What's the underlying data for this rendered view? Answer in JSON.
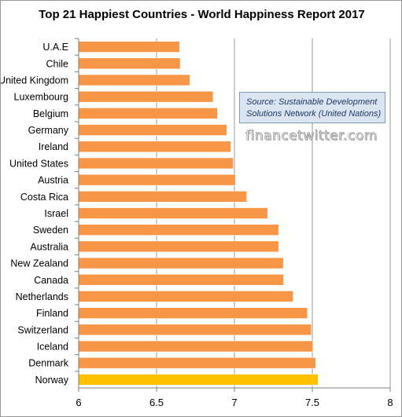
{
  "chart_data": {
    "type": "bar",
    "orientation": "horizontal",
    "title": "Top 21 Happiest Countries - World Happiness Report 2017",
    "categories": [
      "U.A.E",
      "Chile",
      "United Kingdom",
      "Luxembourg",
      "Belgium",
      "Germany",
      "Ireland",
      "United States",
      "Austria",
      "Costa Rica",
      "Israel",
      "Sweden",
      "Australia",
      "New Zealand",
      "Canada",
      "Netherlands",
      "Finland",
      "Switzerland",
      "Iceland",
      "Denmark",
      "Norway"
    ],
    "values": [
      6.648,
      6.652,
      6.714,
      6.863,
      6.891,
      6.951,
      6.977,
      6.993,
      7.006,
      7.079,
      7.213,
      7.284,
      7.284,
      7.314,
      7.316,
      7.377,
      7.469,
      7.494,
      7.504,
      7.522,
      7.537
    ],
    "xlim": [
      6,
      8
    ],
    "xticks": [
      "6",
      "6.5",
      "7",
      "7.5",
      "8"
    ],
    "xlabel": "",
    "ylabel": "",
    "grid": "vertical",
    "colors": {
      "bar": "#f79646",
      "highlight": "#ffc000",
      "grid": "#9a9a9a",
      "axis": "#7f7f7f"
    },
    "highlight_category": "Norway"
  },
  "annotations": {
    "source_line1": "Source: Sustainable  Development",
    "source_line2": "Solutions Network (United Nations)",
    "watermark_part1": "finance",
    "watermark_part2": "twitter",
    "watermark_part3": ".com"
  }
}
